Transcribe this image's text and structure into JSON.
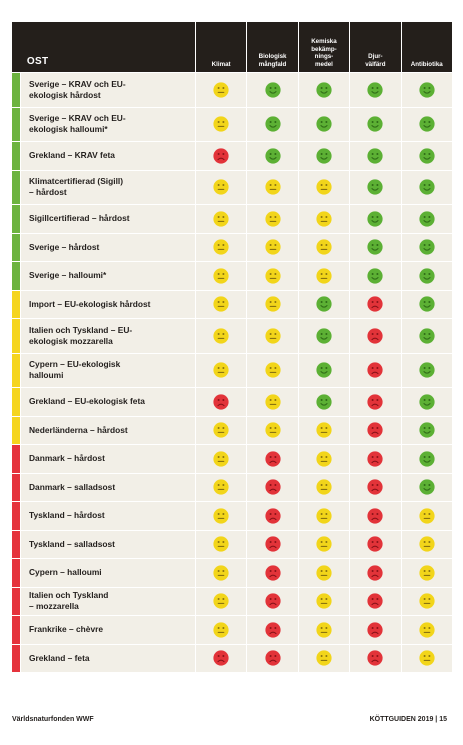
{
  "header": {
    "title": "OST",
    "columns": [
      "Klimat",
      "Biologisk\nmångfald",
      "Kemiska\nbekämp-\nnings-\nmedel",
      "Djur-\nvälfärd",
      "Antibiotika"
    ]
  },
  "colors": {
    "green": "#5cb034",
    "yellow": "#f2d51a",
    "red": "#e23339",
    "bar_green": "#6cb33f",
    "bar_yellow": "#f5d51e",
    "bar_red": "#e5333d",
    "header_bg": "#241f1b",
    "row_bg": "#f2efe7"
  },
  "rows": [
    {
      "name": "Sverige – KRAV och EU-\nekologisk hårdost",
      "bar": "green",
      "tall": true,
      "ratings": [
        "yellow",
        "green",
        "green",
        "green",
        "green"
      ]
    },
    {
      "name": "Sverige – KRAV och EU-\nekologisk halloumi*",
      "bar": "green",
      "tall": true,
      "ratings": [
        "yellow",
        "green",
        "green",
        "green",
        "green"
      ]
    },
    {
      "name": "Grekland – KRAV feta",
      "bar": "green",
      "tall": false,
      "ratings": [
        "red",
        "green",
        "green",
        "green",
        "green"
      ]
    },
    {
      "name": "Klimatcertifierad (Sigill)\n– hårdost",
      "bar": "green",
      "tall": true,
      "ratings": [
        "yellow",
        "yellow",
        "yellow",
        "green",
        "green"
      ]
    },
    {
      "name": "Sigillcertifierad – hårdost",
      "bar": "green",
      "tall": false,
      "ratings": [
        "yellow",
        "yellow",
        "yellow",
        "green",
        "green"
      ]
    },
    {
      "name": "Sverige – hårdost",
      "bar": "green",
      "tall": false,
      "ratings": [
        "yellow",
        "yellow",
        "yellow",
        "green",
        "green"
      ]
    },
    {
      "name": "Sverige – halloumi*",
      "bar": "green",
      "tall": false,
      "ratings": [
        "yellow",
        "yellow",
        "yellow",
        "green",
        "green"
      ]
    },
    {
      "name": "Import – EU-ekologisk hårdost",
      "bar": "yellow",
      "tall": false,
      "ratings": [
        "yellow",
        "yellow",
        "green",
        "red",
        "green"
      ]
    },
    {
      "name": "Italien och Tyskland – EU-\nekologisk mozzarella",
      "bar": "yellow",
      "tall": true,
      "ratings": [
        "yellow",
        "yellow",
        "green",
        "red",
        "green"
      ]
    },
    {
      "name": "Cypern – EU-ekologisk\nhalloumi",
      "bar": "yellow",
      "tall": true,
      "ratings": [
        "yellow",
        "yellow",
        "green",
        "red",
        "green"
      ]
    },
    {
      "name": "Grekland – EU-ekologisk feta",
      "bar": "yellow",
      "tall": false,
      "ratings": [
        "red",
        "yellow",
        "green",
        "red",
        "green"
      ]
    },
    {
      "name": "Nederländerna – hårdost",
      "bar": "yellow",
      "tall": false,
      "ratings": [
        "yellow",
        "yellow",
        "yellow",
        "red",
        "green"
      ]
    },
    {
      "name": "Danmark – hårdost",
      "bar": "red",
      "tall": false,
      "ratings": [
        "yellow",
        "red",
        "yellow",
        "red",
        "green"
      ]
    },
    {
      "name": "Danmark – salladsost",
      "bar": "red",
      "tall": false,
      "ratings": [
        "yellow",
        "red",
        "yellow",
        "red",
        "green"
      ]
    },
    {
      "name": "Tyskland – hårdost",
      "bar": "red",
      "tall": false,
      "ratings": [
        "yellow",
        "red",
        "yellow",
        "red",
        "yellow"
      ]
    },
    {
      "name": "Tyskland – salladsost",
      "bar": "red",
      "tall": false,
      "ratings": [
        "yellow",
        "red",
        "yellow",
        "red",
        "yellow"
      ]
    },
    {
      "name": "Cypern – halloumi",
      "bar": "red",
      "tall": false,
      "ratings": [
        "yellow",
        "red",
        "yellow",
        "red",
        "yellow"
      ]
    },
    {
      "name": "Italien och Tyskland\n– mozzarella",
      "bar": "red",
      "tall": false,
      "ratings": [
        "yellow",
        "red",
        "yellow",
        "red",
        "yellow"
      ]
    },
    {
      "name": "Frankrike – chèvre",
      "bar": "red",
      "tall": false,
      "ratings": [
        "yellow",
        "red",
        "yellow",
        "red",
        "yellow"
      ]
    },
    {
      "name": "Grekland – feta",
      "bar": "red",
      "tall": false,
      "ratings": [
        "red",
        "red",
        "yellow",
        "red",
        "yellow"
      ]
    }
  ],
  "footer": {
    "left": "Världsnaturfonden WWF",
    "right": "KÖTTGUIDEN 2019 | 15"
  }
}
